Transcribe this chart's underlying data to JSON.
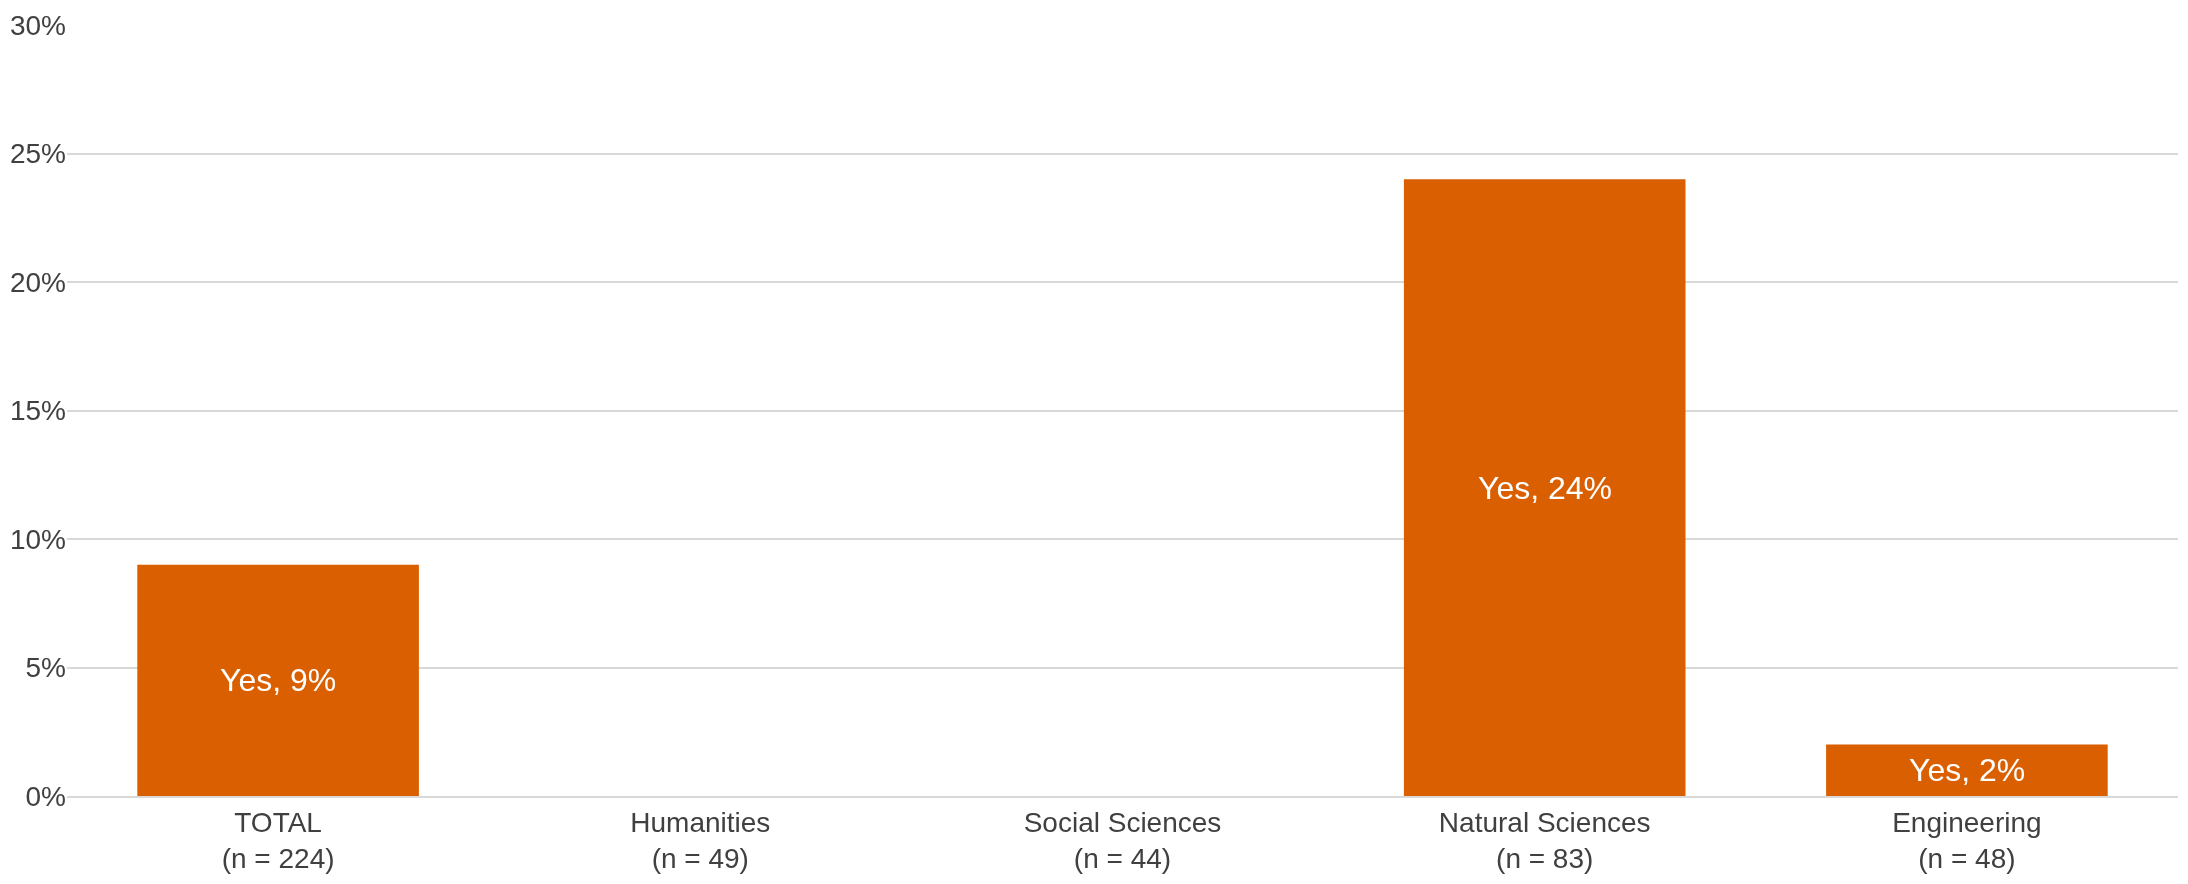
{
  "chart_data": {
    "type": "bar",
    "categories": [
      "TOTAL\n(n = 224)",
      "Humanities\n(n = 49)",
      "Social Sciences\n(n = 44)",
      "Natural Sciences\n(n = 83)",
      "Engineering\n(n = 48)"
    ],
    "values": [
      9,
      0,
      0,
      24,
      2
    ],
    "value_labels": [
      "Yes, 9%",
      null,
      null,
      "Yes, 24%",
      "Yes, 2%"
    ],
    "color": "#da5f00",
    "ylim": [
      0,
      30
    ],
    "yticks": [
      {
        "value": 0,
        "label": "0%"
      },
      {
        "value": 5,
        "label": "5%"
      },
      {
        "value": 10,
        "label": "10%"
      },
      {
        "value": 15,
        "label": "15%"
      },
      {
        "value": 20,
        "label": "20%"
      },
      {
        "value": 25,
        "label": "25%"
      },
      {
        "value": 30,
        "label": "30%"
      }
    ],
    "grid": "y",
    "legend": false
  }
}
